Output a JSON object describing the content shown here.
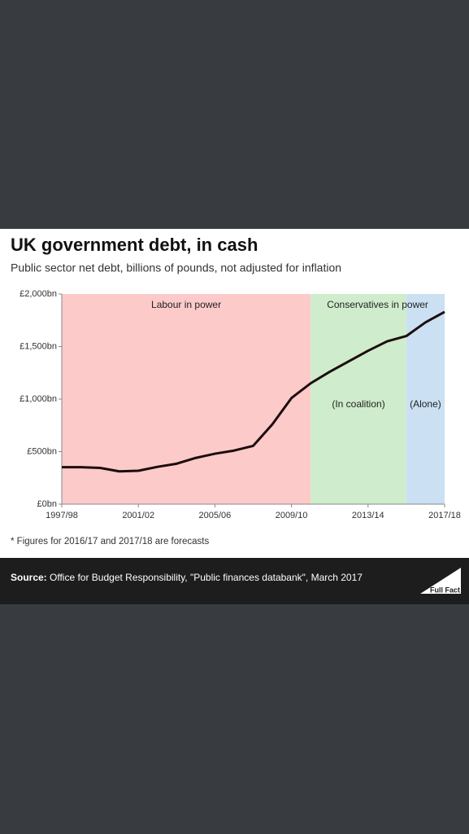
{
  "chart_data": {
    "type": "line",
    "title": "UK government debt, in cash",
    "subtitle": "Public sector net debt, billions of pounds, not adjusted for inflation",
    "x": [
      1997,
      1998,
      1999,
      2000,
      2001,
      2002,
      2003,
      2004,
      2005,
      2006,
      2007,
      2008,
      2009,
      2010,
      2011,
      2012,
      2013,
      2014,
      2015,
      2016,
      2017
    ],
    "series": [
      {
        "color": "#1c0d0d",
        "values": [
          352,
          352,
          345,
          312,
          318,
          355,
          385,
          440,
          480,
          510,
          555,
          760,
          1010,
          1150,
          1260,
          1360,
          1460,
          1550,
          1600,
          1730,
          1830
        ]
      }
    ],
    "xlim": [
      1997,
      2017
    ],
    "xticks": [
      {
        "value": 1997,
        "label": "1997/98"
      },
      {
        "value": 2001,
        "label": "2001/02"
      },
      {
        "value": 2005,
        "label": "2005/06"
      },
      {
        "value": 2009,
        "label": "2009/10"
      },
      {
        "value": 2013,
        "label": "2013/14"
      },
      {
        "value": 2017,
        "label": "2017/18"
      }
    ],
    "ylim": [
      0,
      2000
    ],
    "yticks": [
      {
        "value": 0,
        "label": "£0bn"
      },
      {
        "value": 500,
        "label": "£500bn"
      },
      {
        "value": 1000,
        "label": "£1,000bn"
      },
      {
        "value": 1500,
        "label": "£1,500bn"
      },
      {
        "value": 2000,
        "label": "£2,000bn"
      }
    ],
    "regions": [
      {
        "from": 1997,
        "to": 2010,
        "color": "#fdcaca",
        "label": "Labour in power"
      },
      {
        "from": 2010,
        "to": 2015,
        "color": "#cfeccc",
        "label": "(In coalition)"
      },
      {
        "from": 2015,
        "to": 2017,
        "color": "#cbe0f3",
        "label": "(Alone)"
      }
    ],
    "annotation": "Conservatives in power",
    "footnote": "* Figures for 2016/17 and 2017/18 are forecasts",
    "source": {
      "label": "Source:",
      "text": "Office for Budget Responsibility, \"Public finances databank\", March 2017"
    },
    "logo": "Full Fact"
  }
}
